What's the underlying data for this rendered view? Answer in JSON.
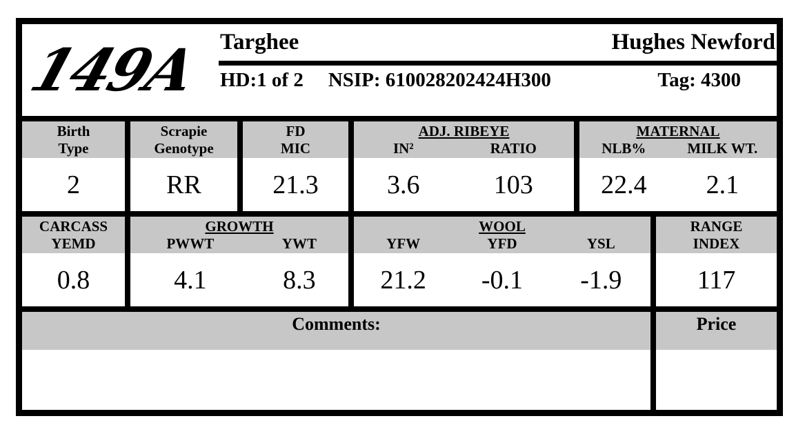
{
  "logo": "149A",
  "header": {
    "breed": "Targhee",
    "owner": "Hughes Newford",
    "hd": "HD:1 of 2",
    "nsip": "NSIP: 610028202424H300",
    "tag": "Tag: 4300"
  },
  "row1": {
    "birth_type": {
      "line1": "Birth",
      "line2": "Type",
      "value": "2"
    },
    "scrapie": {
      "line1": "Scrapie",
      "line2": "Genotype",
      "value": "RR"
    },
    "fd_mic": {
      "line1": "FD",
      "line2": "MIC",
      "value": "21.3"
    },
    "adj_ribeye": {
      "title": "ADJ. RIBEYE",
      "cols": [
        {
          "label": "IN²",
          "value": "3.6"
        },
        {
          "label": "RATIO",
          "value": "103"
        }
      ]
    },
    "maternal": {
      "title": "MATERNAL",
      "cols": [
        {
          "label": "NLB%",
          "value": "22.4"
        },
        {
          "label": "MILK WT.",
          "value": "2.1"
        }
      ]
    }
  },
  "row2": {
    "carcass": {
      "line1": "CARCASS",
      "line2": "YEMD",
      "value": "0.8"
    },
    "growth": {
      "title": "GROWTH",
      "cols": [
        {
          "label": "PWWT",
          "value": "4.1"
        },
        {
          "label": "YWT",
          "value": "8.3"
        }
      ]
    },
    "wool": {
      "title": "WOOL",
      "cols": [
        {
          "label": "YFW",
          "value": "21.2"
        },
        {
          "label": "YFD",
          "value": "-0.1"
        },
        {
          "label": "YSL",
          "value": "-1.9"
        }
      ]
    },
    "range_index": {
      "line1": "RANGE",
      "line2": "INDEX",
      "value": "117"
    }
  },
  "footer": {
    "comments_label": "Comments:",
    "comments_value": "",
    "price_label": "Price",
    "price_value": ""
  },
  "colors": {
    "header_gray": "#c7c7c7",
    "border": "#000000",
    "text": "#000000"
  }
}
